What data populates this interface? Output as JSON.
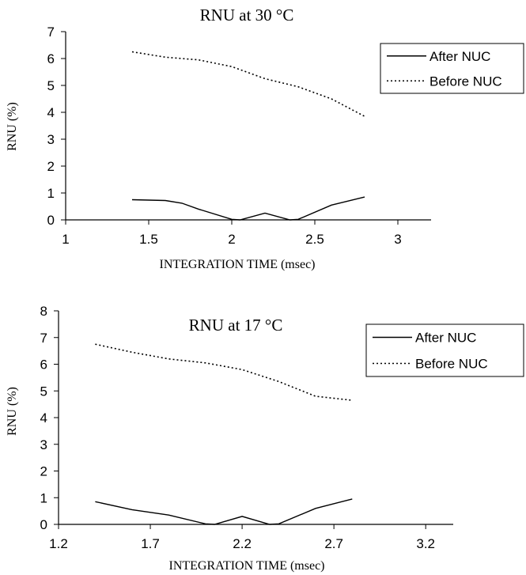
{
  "chart_data": [
    {
      "type": "line",
      "title": "RNU at 30 °C",
      "xlabel": "INTEGRATION TIME (msec)",
      "ylabel": "RNU (%)",
      "xlim": [
        1,
        3.2
      ],
      "ylim": [
        0,
        7
      ],
      "xticks": [
        1,
        1.5,
        2,
        2.5,
        3
      ],
      "yticks": [
        0,
        1,
        2,
        3,
        4,
        5,
        6,
        7
      ],
      "x_tick_labels": [
        "1",
        "1.5",
        "2",
        "2.5",
        "3"
      ],
      "y_tick_labels": [
        "0",
        "1",
        "2",
        "3",
        "4",
        "5",
        "6",
        "7"
      ],
      "grid": false,
      "legend_position": "top-right",
      "series": [
        {
          "name": "After NUC",
          "style": "solid",
          "x": [
            1.4,
            1.6,
            1.7,
            1.8,
            2.0,
            2.05,
            2.2,
            2.35,
            2.4,
            2.6,
            2.8
          ],
          "y": [
            0.75,
            0.72,
            0.62,
            0.4,
            0.02,
            0.0,
            0.25,
            0.0,
            0.02,
            0.55,
            0.85
          ]
        },
        {
          "name": "Before NUC",
          "style": "dotted",
          "x": [
            1.4,
            1.6,
            1.8,
            2.0,
            2.2,
            2.4,
            2.6,
            2.8
          ],
          "y": [
            6.25,
            6.05,
            5.95,
            5.7,
            5.25,
            4.95,
            4.5,
            3.85
          ]
        }
      ]
    },
    {
      "type": "line",
      "title": "RNU at 17 °C",
      "xlabel": "INTEGRATION TIME (msec)",
      "ylabel": "RNU (%)",
      "xlim": [
        1.2,
        3.35
      ],
      "ylim": [
        0,
        8
      ],
      "xticks": [
        1.2,
        1.7,
        2.2,
        2.7,
        3.2
      ],
      "yticks": [
        0,
        1,
        2,
        3,
        4,
        5,
        6,
        7,
        8
      ],
      "x_tick_labels": [
        "1.2",
        "1.7",
        "2.2",
        "2.7",
        "3.2"
      ],
      "y_tick_labels": [
        "0",
        "1",
        "2",
        "3",
        "4",
        "5",
        "6",
        "7",
        "8"
      ],
      "grid": false,
      "legend_position": "top-right",
      "series": [
        {
          "name": "After NUC",
          "style": "solid",
          "x": [
            1.4,
            1.6,
            1.8,
            2.0,
            2.05,
            2.2,
            2.35,
            2.4,
            2.6,
            2.8
          ],
          "y": [
            0.85,
            0.55,
            0.35,
            0.02,
            0.0,
            0.3,
            0.0,
            0.02,
            0.6,
            0.95
          ]
        },
        {
          "name": "Before NUC",
          "style": "dotted",
          "x": [
            1.4,
            1.6,
            1.8,
            2.0,
            2.2,
            2.4,
            2.6,
            2.8
          ],
          "y": [
            6.75,
            6.45,
            6.2,
            6.05,
            5.8,
            5.35,
            4.8,
            4.65
          ]
        }
      ]
    }
  ]
}
